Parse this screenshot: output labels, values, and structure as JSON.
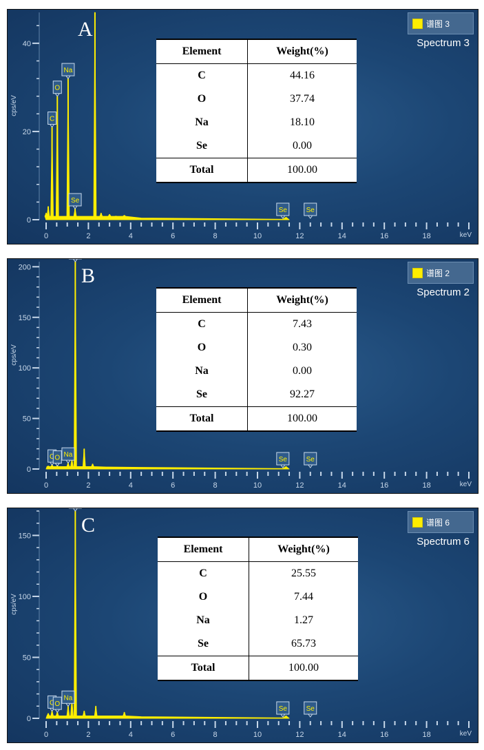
{
  "panels": [
    {
      "letter": "A",
      "legend_label": "谱图 3",
      "spectrum_name": "Spectrum 3",
      "table": {
        "headers": [
          "Element",
          "Weight(%)"
        ],
        "rows": [
          [
            "C",
            "44.16"
          ],
          [
            "O",
            "37.74"
          ],
          [
            "Na",
            "18.10"
          ],
          [
            "Se",
            "0.00"
          ]
        ],
        "total": [
          "Total",
          "100.00"
        ]
      }
    },
    {
      "letter": "B",
      "legend_label": "谱图 2",
      "spectrum_name": "Spectrum 2",
      "table": {
        "headers": [
          "Element",
          "Weight(%)"
        ],
        "rows": [
          [
            "C",
            "7.43"
          ],
          [
            "O",
            "0.30"
          ],
          [
            "Na",
            "0.00"
          ],
          [
            "Se",
            "92.27"
          ]
        ],
        "total": [
          "Total",
          "100.00"
        ]
      }
    },
    {
      "letter": "C",
      "legend_label": "谱图 6",
      "spectrum_name": "Spectrum 6",
      "table": {
        "headers": [
          "Element",
          "Weight(%)"
        ],
        "rows": [
          [
            "C",
            "25.55"
          ],
          [
            "O",
            "7.44"
          ],
          [
            "Na",
            "1.27"
          ],
          [
            "Se",
            "65.73"
          ]
        ],
        "total": [
          "Total",
          "100.00"
        ]
      }
    }
  ],
  "colors": {
    "spectrum": "#ffee00",
    "panel_bg": "#1c4674",
    "axis": "#c8d8ea"
  },
  "chart_data": [
    {
      "type": "line",
      "xlabel": "keV",
      "ylabel": "cps/eV",
      "xlim": [
        0,
        20
      ],
      "ylim": [
        0,
        47
      ],
      "xticks": [
        0,
        2,
        4,
        6,
        8,
        10,
        12,
        14,
        16,
        18
      ],
      "yticks": [
        0,
        20,
        40
      ],
      "peaks": [
        {
          "x": 0.0,
          "y": 1.5
        },
        {
          "x": 0.1,
          "y": 3.0
        },
        {
          "x": 0.28,
          "y": 21
        },
        {
          "x": 0.53,
          "y": 28
        },
        {
          "x": 1.04,
          "y": 32
        },
        {
          "x": 1.37,
          "y": 2.5
        },
        {
          "x": 2.31,
          "y": 47
        },
        {
          "x": 2.6,
          "y": 1.5
        },
        {
          "x": 3.0,
          "y": 1.2
        },
        {
          "x": 3.3,
          "y": 0.8
        },
        {
          "x": 3.7,
          "y": 1.0
        }
      ],
      "line_labels": [
        {
          "text": "C",
          "x": 0.28
        },
        {
          "text": "O",
          "x": 0.53
        },
        {
          "text": "Na",
          "x": 1.04
        },
        {
          "text": "Se",
          "x": 1.37
        },
        {
          "text": "Se",
          "x": 11.2
        },
        {
          "text": "Se",
          "x": 12.5
        }
      ]
    },
    {
      "type": "line",
      "xlabel": "keV",
      "ylabel": "cps/eV",
      "xlim": [
        0,
        20
      ],
      "ylim": [
        0,
        205
      ],
      "xticks": [
        0,
        2,
        4,
        6,
        8,
        10,
        12,
        14,
        16,
        18
      ],
      "yticks": [
        0,
        50,
        100,
        150,
        200
      ],
      "peaks": [
        {
          "x": 0.1,
          "y": 3
        },
        {
          "x": 0.28,
          "y": 4
        },
        {
          "x": 0.53,
          "y": 3
        },
        {
          "x": 1.04,
          "y": 6
        },
        {
          "x": 1.22,
          "y": 10
        },
        {
          "x": 1.38,
          "y": 205
        },
        {
          "x": 1.8,
          "y": 20
        },
        {
          "x": 2.2,
          "y": 5
        },
        {
          "x": 2.9,
          "y": 2
        }
      ],
      "line_labels": [
        {
          "text": "C",
          "x": 0.28
        },
        {
          "text": "O",
          "x": 0.53
        },
        {
          "text": "Na",
          "x": 1.04
        },
        {
          "text": "Se",
          "x": 1.38
        },
        {
          "text": "Se",
          "x": 11.2
        },
        {
          "text": "Se",
          "x": 12.5
        }
      ]
    },
    {
      "type": "line",
      "xlabel": "keV",
      "ylabel": "cps/eV",
      "xlim": [
        0,
        20
      ],
      "ylim": [
        0,
        170
      ],
      "xticks": [
        0,
        2,
        4,
        6,
        8,
        10,
        12,
        14,
        16,
        18
      ],
      "yticks": [
        0,
        50,
        100,
        150
      ],
      "peaks": [
        {
          "x": 0.1,
          "y": 4
        },
        {
          "x": 0.28,
          "y": 6
        },
        {
          "x": 0.53,
          "y": 5
        },
        {
          "x": 1.04,
          "y": 10
        },
        {
          "x": 1.22,
          "y": 16
        },
        {
          "x": 1.38,
          "y": 170
        },
        {
          "x": 1.8,
          "y": 6
        },
        {
          "x": 2.35,
          "y": 10
        },
        {
          "x": 3.7,
          "y": 5
        }
      ],
      "line_labels": [
        {
          "text": "C",
          "x": 0.28
        },
        {
          "text": "O",
          "x": 0.53
        },
        {
          "text": "Na",
          "x": 1.04
        },
        {
          "text": "Se",
          "x": 1.38
        },
        {
          "text": "Se",
          "x": 11.2
        },
        {
          "text": "Se",
          "x": 12.5
        }
      ]
    }
  ]
}
